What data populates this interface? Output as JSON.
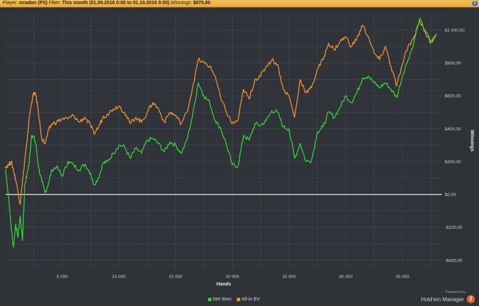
{
  "header": {
    "player_label": "Player:",
    "player_value": "mradon (PS)",
    "filter_label": "Filter:",
    "filter_value": "This month (01.09.2016 0:00 to 01.10.2016 0:00)",
    "winnings_label": "Winnings:",
    "winnings_value": "$975,80",
    "info_icon": "info-icon"
  },
  "footer": {
    "powered_by": "Powered by",
    "brand": "Hold'em Manager",
    "logo_text": "2"
  },
  "colors": {
    "net_won": "#35d235",
    "allin_ev": "#f0922e",
    "zero_line": "#ffffff",
    "grid": "#44494f",
    "background": "#2f3338"
  },
  "chart_data": {
    "type": "line",
    "xlabel": "Hands",
    "ylabel": "Winnings",
    "xlim": [
      0,
      38500
    ],
    "ylim": [
      -450,
      1100
    ],
    "x_ticks": [
      5000,
      10000,
      15000,
      20000,
      25000,
      30000,
      35000
    ],
    "x_tick_labels": [
      "5 000",
      "10 000",
      "15 000",
      "20 000",
      "25 000",
      "30 000",
      "35 000"
    ],
    "y_ticks": [
      1000,
      800,
      600,
      400,
      200,
      0,
      -200,
      -400
    ],
    "y_tick_labels": [
      "$1 000,00",
      "$800,00",
      "$600,00",
      "$400,00",
      "$200,00",
      "$0,00",
      "-$200,00",
      "-$400,00"
    ],
    "grid": true,
    "legend_position": "bottom-center",
    "series": [
      {
        "name": "Net Won",
        "x": [
          0,
          300,
          500,
          700,
          900,
          1100,
          1300,
          1500,
          1700,
          1900,
          2100,
          2300,
          2500,
          2700,
          2900,
          3200,
          3500,
          3800,
          4100,
          4500,
          5000,
          5500,
          6000,
          6500,
          7000,
          7500,
          7800,
          8200,
          8600,
          9000,
          9500,
          10000,
          10500,
          11000,
          11500,
          12000,
          12500,
          13000,
          13500,
          14000,
          14500,
          15000,
          15500,
          16000,
          16500,
          17000,
          17500,
          18000,
          18500,
          19000,
          19500,
          20000,
          20500,
          21000,
          21500,
          22000,
          22500,
          23000,
          23500,
          24000,
          24500,
          25000,
          25500,
          26000,
          26500,
          27000,
          27500,
          28000,
          28500,
          29000,
          29500,
          30000,
          30500,
          31000,
          31500,
          32000,
          32500,
          33000,
          33500,
          34000,
          34500,
          35000,
          35500,
          36000,
          36500,
          37000,
          37500,
          38000
        ],
        "values": [
          150,
          -30,
          -200,
          -320,
          -180,
          -260,
          -130,
          -280,
          60,
          120,
          200,
          360,
          350,
          300,
          170,
          80,
          10,
          70,
          150,
          170,
          110,
          200,
          180,
          150,
          185,
          130,
          60,
          100,
          190,
          200,
          250,
          300,
          290,
          220,
          280,
          250,
          330,
          340,
          310,
          260,
          320,
          300,
          250,
          330,
          480,
          680,
          600,
          560,
          450,
          400,
          300,
          180,
          170,
          360,
          330,
          430,
          420,
          450,
          510,
          500,
          410,
          400,
          220,
          310,
          200,
          210,
          380,
          410,
          500,
          470,
          530,
          600,
          560,
          620,
          710,
          720,
          680,
          650,
          680,
          640,
          590,
          720,
          820,
          920,
          1070,
          1000,
          930,
          970
        ]
      },
      {
        "name": "All-in EV",
        "x": [
          0,
          300,
          500,
          700,
          900,
          1100,
          1300,
          1500,
          1700,
          1900,
          2100,
          2300,
          2500,
          2700,
          2900,
          3200,
          3500,
          3800,
          4100,
          4500,
          5000,
          5500,
          6000,
          6500,
          7000,
          7500,
          7800,
          8200,
          8600,
          9000,
          9500,
          10000,
          10500,
          11000,
          11500,
          12000,
          12500,
          13000,
          13500,
          14000,
          14500,
          15000,
          15500,
          16000,
          16500,
          17000,
          17500,
          18000,
          18500,
          19000,
          19500,
          20000,
          20500,
          21000,
          21500,
          22000,
          22500,
          23000,
          23500,
          24000,
          24500,
          25000,
          25500,
          26000,
          26500,
          27000,
          27500,
          28000,
          28500,
          29000,
          29500,
          30000,
          30500,
          31000,
          31500,
          32000,
          32500,
          33000,
          33500,
          34000,
          34500,
          35000,
          35500,
          36000,
          36500,
          37000,
          37500,
          38000
        ],
        "values": [
          170,
          180,
          200,
          150,
          90,
          20,
          -60,
          80,
          200,
          320,
          470,
          560,
          620,
          600,
          500,
          340,
          310,
          390,
          430,
          440,
          460,
          460,
          480,
          440,
          470,
          420,
          370,
          410,
          470,
          490,
          520,
          540,
          500,
          430,
          470,
          440,
          500,
          560,
          520,
          440,
          500,
          480,
          430,
          500,
          650,
          820,
          800,
          780,
          720,
          580,
          500,
          430,
          450,
          640,
          580,
          700,
          720,
          780,
          820,
          790,
          640,
          600,
          470,
          700,
          620,
          650,
          760,
          820,
          920,
          880,
          930,
          960,
          900,
          950,
          1030,
          960,
          860,
          820,
          900,
          780,
          660,
          790,
          900,
          950,
          1060,
          990,
          920,
          980
        ]
      }
    ]
  }
}
